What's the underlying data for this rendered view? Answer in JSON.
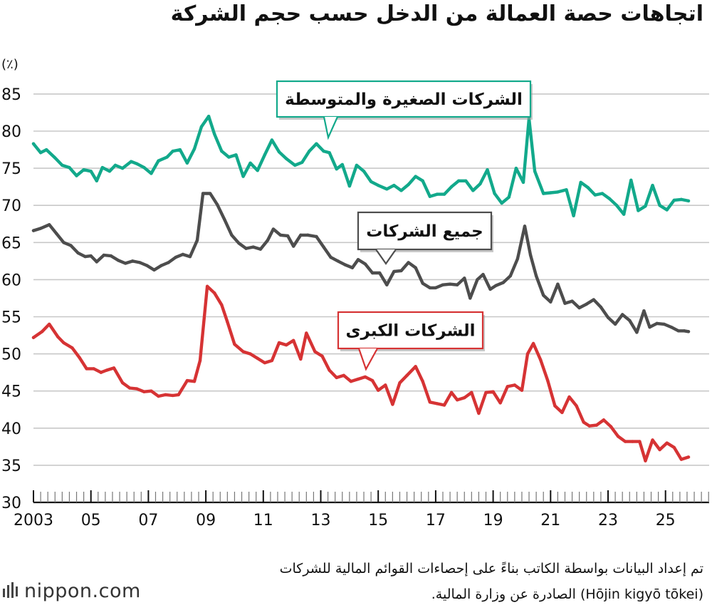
{
  "chart_data": {
    "type": "line",
    "title": "اتجاهات حصة العمالة من الدخل حسب حجم الشركة",
    "ylabel": "(٪)",
    "ylim": [
      30,
      88
    ],
    "xlim": [
      2003.0,
      2025.85
    ],
    "grid": true,
    "yticks": [
      "30",
      "35",
      "40",
      "45",
      "50",
      "55",
      "60",
      "65",
      "70",
      "75",
      "80",
      "85"
    ],
    "xticks": [
      {
        "year": 2003,
        "label": "2003"
      },
      {
        "year": 2005,
        "label": "05"
      },
      {
        "year": 2007,
        "label": "07"
      },
      {
        "year": 2009,
        "label": "09"
      },
      {
        "year": 2011,
        "label": "11"
      },
      {
        "year": 2013,
        "label": "13"
      },
      {
        "year": 2015,
        "label": "15"
      },
      {
        "year": 2017,
        "label": "17"
      },
      {
        "year": 2019,
        "label": "19"
      },
      {
        "year": 2021,
        "label": "21"
      },
      {
        "year": 2023,
        "label": "23"
      },
      {
        "year": 2025,
        "label": "25"
      }
    ],
    "series": [
      {
        "name": "الشركات الصغيرة والمتوسطة",
        "color": "#12a98b",
        "x": [
          2003.0,
          2003.25,
          2003.45,
          2003.75,
          2004.0,
          2004.25,
          2004.5,
          2004.75,
          2005.0,
          2005.2,
          2005.4,
          2005.65,
          2005.85,
          2006.1,
          2006.4,
          2006.6,
          2006.85,
          2007.1,
          2007.35,
          2007.65,
          2007.85,
          2008.1,
          2008.35,
          2008.6,
          2008.85,
          2009.1,
          2009.3,
          2009.55,
          2009.8,
          2010.05,
          2010.3,
          2010.55,
          2010.8,
          2011.05,
          2011.3,
          2011.55,
          2011.8,
          2012.1,
          2012.35,
          2012.6,
          2012.85,
          2013.1,
          2013.3,
          2013.55,
          2013.75,
          2014.0,
          2014.25,
          2014.5,
          2014.75,
          2015.0,
          2015.3,
          2015.55,
          2015.8,
          2016.05,
          2016.3,
          2016.55,
          2016.8,
          2017.05,
          2017.3,
          2017.55,
          2017.8,
          2018.05,
          2018.3,
          2018.55,
          2018.8,
          2019.05,
          2019.3,
          2019.55,
          2019.8,
          2020.05,
          2020.25,
          2020.45,
          2020.75,
          2021.0,
          2021.25,
          2021.55,
          2021.8,
          2022.05,
          2022.3,
          2022.55,
          2022.8,
          2023.05,
          2023.3,
          2023.55,
          2023.8,
          2024.05,
          2024.3,
          2024.55,
          2024.8,
          2025.05,
          2025.3,
          2025.55,
          2025.8
        ],
        "values": [
          78.3,
          77.1,
          77.5,
          76.4,
          75.4,
          75.1,
          74.0,
          74.8,
          74.6,
          73.3,
          75.1,
          74.6,
          75.4,
          75.0,
          75.9,
          75.6,
          75.1,
          74.3,
          76.0,
          76.5,
          77.3,
          77.5,
          75.7,
          77.6,
          80.6,
          82.0,
          79.6,
          77.3,
          76.5,
          76.8,
          73.9,
          75.7,
          74.7,
          76.8,
          78.8,
          77.2,
          76.3,
          75.4,
          75.8,
          77.3,
          78.3,
          77.3,
          77.1,
          74.9,
          75.5,
          72.6,
          75.4,
          74.6,
          73.2,
          72.7,
          72.2,
          72.7,
          72.0,
          72.8,
          73.9,
          73.3,
          71.2,
          71.5,
          71.5,
          72.5,
          73.3,
          73.3,
          72.0,
          72.9,
          74.8,
          71.6,
          70.3,
          71.1,
          75.0,
          73.1,
          81.7,
          74.6,
          71.6,
          71.7,
          71.8,
          72.1,
          68.6,
          73.1,
          72.4,
          71.4,
          71.6,
          70.9,
          70.0,
          68.8,
          73.4,
          69.3,
          69.9,
          72.7,
          70.0,
          69.4,
          70.7,
          70.8,
          70.6
        ]
      },
      {
        "name": "جميع الشركات",
        "color": "#4d4d4d",
        "x": [
          2003.0,
          2003.25,
          2003.55,
          2003.8,
          2004.05,
          2004.3,
          2004.55,
          2004.8,
          2005.0,
          2005.2,
          2005.45,
          2005.7,
          2005.95,
          2006.2,
          2006.45,
          2006.7,
          2006.95,
          2007.2,
          2007.45,
          2007.7,
          2007.95,
          2008.2,
          2008.45,
          2008.7,
          2008.9,
          2009.15,
          2009.4,
          2009.65,
          2009.9,
          2010.15,
          2010.4,
          2010.65,
          2010.9,
          2011.15,
          2011.35,
          2011.6,
          2011.85,
          2012.05,
          2012.3,
          2012.55,
          2012.85,
          2013.1,
          2013.35,
          2013.6,
          2013.85,
          2014.1,
          2014.3,
          2014.55,
          2014.8,
          2015.05,
          2015.3,
          2015.55,
          2015.8,
          2016.05,
          2016.3,
          2016.55,
          2016.8,
          2017.0,
          2017.25,
          2017.5,
          2017.75,
          2018.0,
          2018.2,
          2018.45,
          2018.65,
          2018.9,
          2019.1,
          2019.35,
          2019.6,
          2019.85,
          2020.1,
          2020.3,
          2020.5,
          2020.75,
          2021.0,
          2021.25,
          2021.5,
          2021.75,
          2022.0,
          2022.25,
          2022.5,
          2022.75,
          2023.0,
          2023.25,
          2023.5,
          2023.75,
          2024.0,
          2024.25,
          2024.45,
          2024.7,
          2024.95,
          2025.2,
          2025.45,
          2025.65,
          2025.8
        ],
        "values": [
          66.6,
          66.9,
          67.4,
          66.2,
          65.0,
          64.6,
          63.6,
          63.1,
          63.2,
          62.4,
          63.3,
          63.2,
          62.6,
          62.2,
          62.5,
          62.3,
          61.9,
          61.3,
          61.9,
          62.3,
          63.0,
          63.4,
          63.1,
          65.3,
          71.6,
          71.6,
          70.1,
          68.1,
          66.0,
          64.9,
          64.2,
          64.4,
          64.1,
          65.3,
          66.8,
          66.0,
          65.9,
          64.5,
          66.0,
          66.0,
          65.8,
          64.4,
          63.0,
          62.5,
          62.0,
          61.6,
          62.7,
          62.1,
          60.9,
          60.9,
          59.3,
          61.1,
          61.2,
          62.3,
          61.6,
          59.5,
          58.9,
          58.9,
          59.3,
          59.4,
          59.3,
          60.2,
          57.5,
          60.0,
          60.7,
          58.7,
          59.2,
          59.6,
          60.5,
          62.8,
          67.2,
          63.3,
          60.5,
          57.9,
          57.0,
          59.4,
          56.8,
          57.1,
          56.2,
          56.7,
          57.3,
          56.3,
          54.9,
          54.0,
          55.3,
          54.5,
          52.9,
          55.8,
          53.6,
          54.1,
          54.0,
          53.6,
          53.1,
          53.1,
          53.0
        ]
      },
      {
        "name": "الشركات الكبرى",
        "color": "#d63334",
        "x": [
          2003.0,
          2003.3,
          2003.55,
          2003.85,
          2004.05,
          2004.35,
          2004.6,
          2004.85,
          2005.1,
          2005.35,
          2005.55,
          2005.8,
          2006.1,
          2006.35,
          2006.6,
          2006.85,
          2007.1,
          2007.35,
          2007.6,
          2007.85,
          2008.05,
          2008.35,
          2008.6,
          2008.8,
          2009.05,
          2009.3,
          2009.55,
          2009.75,
          2010.0,
          2010.3,
          2010.55,
          2010.8,
          2011.05,
          2011.3,
          2011.55,
          2011.8,
          2012.05,
          2012.3,
          2012.5,
          2012.8,
          2013.05,
          2013.3,
          2013.55,
          2013.8,
          2014.05,
          2014.3,
          2014.55,
          2014.8,
          2015.0,
          2015.25,
          2015.5,
          2015.75,
          2016.0,
          2016.3,
          2016.55,
          2016.8,
          2017.05,
          2017.3,
          2017.55,
          2017.75,
          2018.0,
          2018.25,
          2018.5,
          2018.75,
          2019.0,
          2019.25,
          2019.5,
          2019.75,
          2020.0,
          2020.2,
          2020.4,
          2020.65,
          2020.9,
          2021.15,
          2021.4,
          2021.65,
          2021.9,
          2022.15,
          2022.35,
          2022.6,
          2022.85,
          2023.1,
          2023.35,
          2023.6,
          2023.85,
          2024.1,
          2024.3,
          2024.55,
          2024.8,
          2025.05,
          2025.3,
          2025.55,
          2025.8
        ],
        "values": [
          52.2,
          53.0,
          54.0,
          52.3,
          51.5,
          50.8,
          49.5,
          48.0,
          48.0,
          47.5,
          47.8,
          48.1,
          46.1,
          45.4,
          45.3,
          44.9,
          45.0,
          44.3,
          44.5,
          44.4,
          44.5,
          46.4,
          46.3,
          49.1,
          59.1,
          58.2,
          56.6,
          54.3,
          51.3,
          50.3,
          50.0,
          49.4,
          48.8,
          49.1,
          51.5,
          51.2,
          51.8,
          49.3,
          52.8,
          50.3,
          49.7,
          47.8,
          46.8,
          47.1,
          46.3,
          46.6,
          46.9,
          46.4,
          45.1,
          45.8,
          43.2,
          46.1,
          47.1,
          48.3,
          46.3,
          43.5,
          43.3,
          43.1,
          44.8,
          43.8,
          44.1,
          44.8,
          42.0,
          44.8,
          44.9,
          43.4,
          45.6,
          45.8,
          45.1,
          50.0,
          51.4,
          49.2,
          46.4,
          43.0,
          42.1,
          44.2,
          43.0,
          40.8,
          40.3,
          40.4,
          41.1,
          40.2,
          38.9,
          38.2,
          38.2,
          38.2,
          35.6,
          38.4,
          37.1,
          38.0,
          37.4,
          35.8,
          36.1
        ]
      }
    ],
    "annotations": [
      {
        "text": "الشركات الصغيرة والمتوسطة",
        "series": 0
      },
      {
        "text": "جميع الشركات",
        "series": 1
      },
      {
        "text": "الشركات الكبرى",
        "series": 2
      }
    ]
  },
  "source": {
    "line1": "تم إعداد البيانات بواسطة الكاتب بناءً على إحصاءات القوائم المالية للشركات",
    "line2": "(Hōjin kigyō tōkei) الصادرة عن وزارة المالية."
  },
  "brand": {
    "text": "nippon.com",
    "icon": "nippon-logo-bars-icon"
  }
}
